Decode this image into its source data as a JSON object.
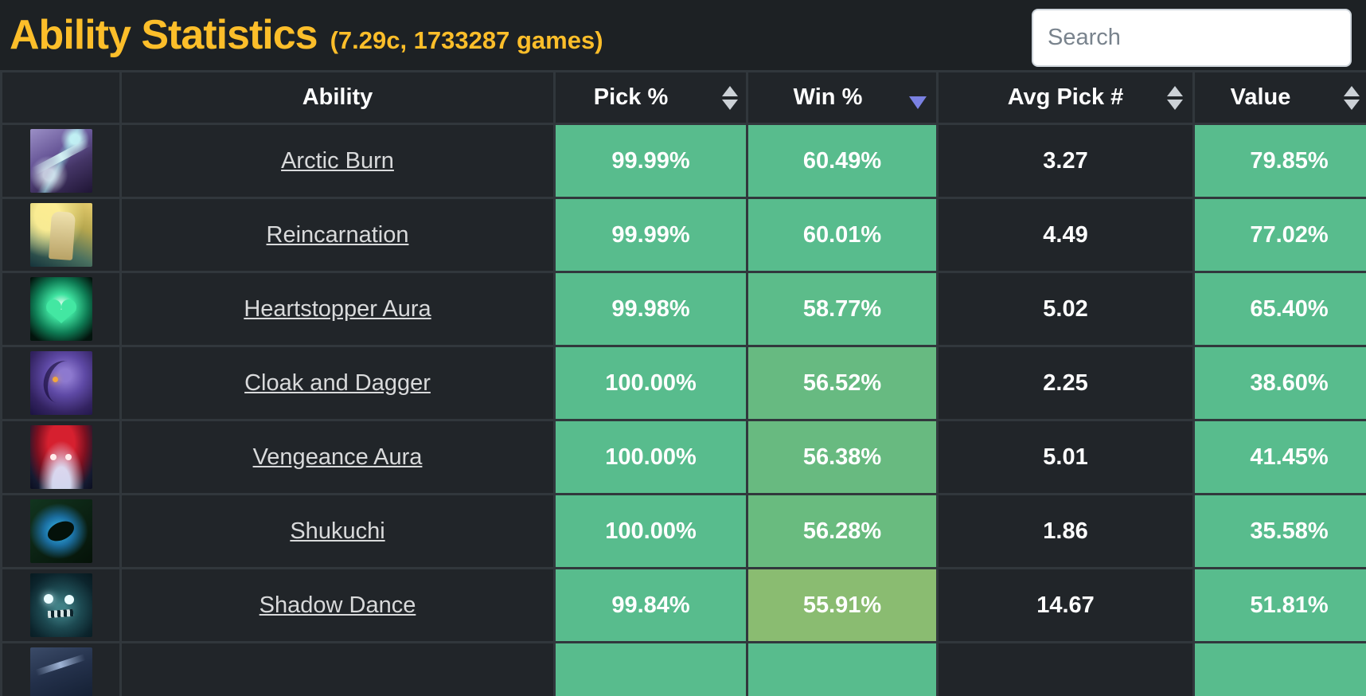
{
  "header": {
    "title": "Ability Statistics",
    "subtitle": "(7.29c, 1733287 games)",
    "accent_color": "#fcbe2a"
  },
  "search": {
    "placeholder": "Search"
  },
  "table": {
    "sort": {
      "column": "Win %",
      "direction": "descending",
      "indicator_color": "#7a81e2"
    },
    "columns": [
      {
        "label": "",
        "sortable": false
      },
      {
        "label": "Ability",
        "sortable": false
      },
      {
        "label": "Pick %",
        "sortable": true,
        "sort_state": "none"
      },
      {
        "label": "Win %",
        "sortable": true,
        "sort_state": "descending"
      },
      {
        "label": "Avg Pick #",
        "sortable": true,
        "sort_state": "none"
      },
      {
        "label": "Value",
        "sortable": true,
        "sort_state": "none"
      }
    ],
    "cell_colors": {
      "green": "#58bc8d",
      "dark": "#212529"
    },
    "rows": [
      {
        "icon": "arctic-burn-icon",
        "ability": "Arctic Burn",
        "pick_pct": "99.99%",
        "win_pct": "60.49%",
        "avg_pick": "3.27",
        "value": "79.85%",
        "pick_bg": "#58bc8d",
        "win_bg": "#58bc8d",
        "value_bg": "#58bc8d"
      },
      {
        "icon": "reincarnation-icon",
        "ability": "Reincarnation",
        "pick_pct": "99.99%",
        "win_pct": "60.01%",
        "avg_pick": "4.49",
        "value": "77.02%",
        "pick_bg": "#58bc8d",
        "win_bg": "#58bc8d",
        "value_bg": "#58bc8d"
      },
      {
        "icon": "heartstopper-aura-icon",
        "ability": "Heartstopper Aura",
        "pick_pct": "99.98%",
        "win_pct": "58.77%",
        "avg_pick": "5.02",
        "value": "65.40%",
        "pick_bg": "#58bc8d",
        "win_bg": "#5cbc8a",
        "value_bg": "#58bc8d"
      },
      {
        "icon": "cloak-and-dagger-icon",
        "ability": "Cloak and Dagger",
        "pick_pct": "100.00%",
        "win_pct": "56.52%",
        "avg_pick": "2.25",
        "value": "38.60%",
        "pick_bg": "#58bc8d",
        "win_bg": "#67ba81",
        "value_bg": "#58bc8d"
      },
      {
        "icon": "vengeance-aura-icon",
        "ability": "Vengeance Aura",
        "pick_pct": "100.00%",
        "win_pct": "56.38%",
        "avg_pick": "5.01",
        "value": "41.45%",
        "pick_bg": "#58bc8d",
        "win_bg": "#68ba80",
        "value_bg": "#58bc8d"
      },
      {
        "icon": "shukuchi-icon",
        "ability": "Shukuchi",
        "pick_pct": "100.00%",
        "win_pct": "56.28%",
        "avg_pick": "1.86",
        "value": "35.58%",
        "pick_bg": "#58bc8d",
        "win_bg": "#69bb7f",
        "value_bg": "#58bc8d"
      },
      {
        "icon": "shadow-dance-icon",
        "ability": "Shadow Dance",
        "pick_pct": "99.84%",
        "win_pct": "55.91%",
        "avg_pick": "14.67",
        "value": "51.81%",
        "pick_bg": "#58bc8d",
        "win_bg": "#8abc71",
        "value_bg": "#58bc8d"
      },
      {
        "icon": "next-row-partial-icon",
        "ability": "",
        "pick_pct": "",
        "win_pct": "",
        "avg_pick": "",
        "value": "",
        "pick_bg": "#58bc8d",
        "win_bg": "#58bc8d",
        "value_bg": "#58bc8d"
      }
    ]
  }
}
